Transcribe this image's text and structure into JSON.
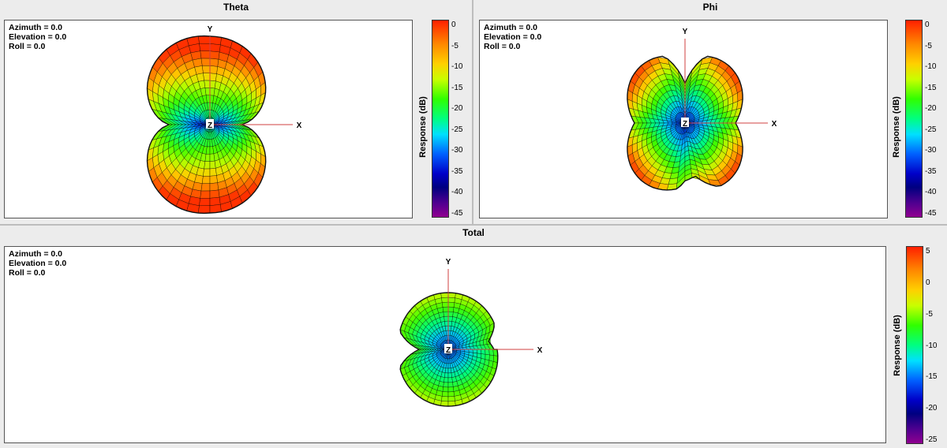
{
  "panels": {
    "theta": {
      "title": "Theta",
      "orientation": {
        "azimuth": "Azimuth = 0.0",
        "elevation": "Elevation = 0.0",
        "roll": "Roll = 0.0"
      },
      "axes": {
        "x": "X",
        "y": "Y",
        "z": "Z"
      },
      "colorbar": {
        "title": "Response (dB)",
        "ticks": [
          "0",
          "-5",
          "-10",
          "-15",
          "-20",
          "-25",
          "-30",
          "-35",
          "-40",
          "-45"
        ],
        "range": [
          -45,
          0
        ]
      }
    },
    "phi": {
      "title": "Phi",
      "orientation": {
        "azimuth": "Azimuth = 0.0",
        "elevation": "Elevation = 0.0",
        "roll": "Roll = 0.0"
      },
      "axes": {
        "x": "X",
        "y": "Y",
        "z": "Z"
      },
      "colorbar": {
        "title": "Response (dB)",
        "ticks": [
          "0",
          "-5",
          "-10",
          "-15",
          "-20",
          "-25",
          "-30",
          "-35",
          "-40",
          "-45"
        ],
        "range": [
          -45,
          0
        ]
      }
    },
    "total": {
      "title": "Total",
      "orientation": {
        "azimuth": "Azimuth = 0.0",
        "elevation": "Elevation = 0.0",
        "roll": "Roll = 0.0"
      },
      "axes": {
        "x": "X",
        "y": "Y",
        "z": "Z"
      },
      "colorbar": {
        "title": "Response (dB)",
        "ticks": [
          "5",
          "0",
          "-5",
          "-10",
          "-15",
          "-20",
          "-25"
        ],
        "range": [
          -25,
          5
        ]
      }
    }
  },
  "chart_data": [
    {
      "type": "heatmap",
      "title": "Theta",
      "colorbar_label": "Response (dB)",
      "zlim": [
        -45,
        0
      ]
    },
    {
      "type": "heatmap",
      "title": "Phi",
      "colorbar_label": "Response (dB)",
      "zlim": [
        -45,
        0
      ]
    },
    {
      "type": "heatmap",
      "title": "Total",
      "colorbar_label": "Response (dB)",
      "zlim": [
        -25,
        5
      ]
    }
  ]
}
